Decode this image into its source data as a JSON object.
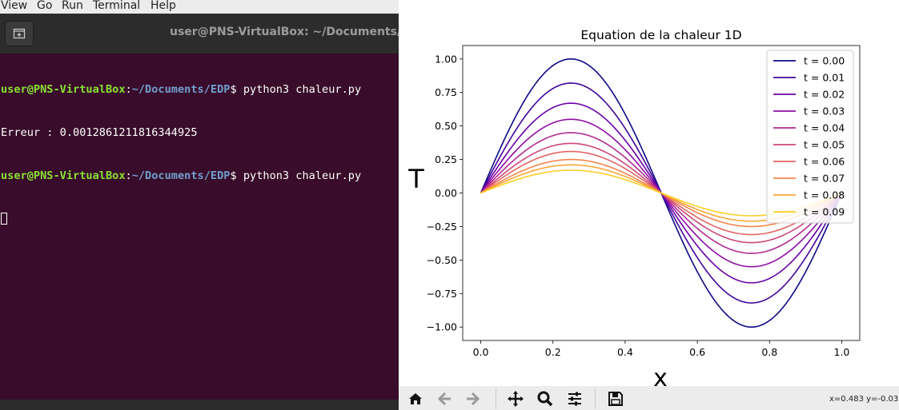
{
  "menubar": {
    "items": [
      "View",
      "Go",
      "Run",
      "Terminal",
      "Help"
    ]
  },
  "terminal": {
    "title": "user@PNS-VirtualBox: ~/Documents/EDP",
    "prompt_user": "user@PNS-VirtualBox",
    "prompt_sep": ":",
    "prompt_path": "~/Documents/EDP",
    "prompt_dollar": "$ ",
    "command1": "python3 chaleur.py",
    "output1": "Erreur : 0.0012861211816344925",
    "command2": "python3 chaleur.py"
  },
  "plot_window": {
    "coords": "x=0.483 y=-0.03",
    "toolbar_icons": [
      "home-icon",
      "back-arrow-icon",
      "forward-arrow-icon",
      "pan-icon",
      "zoom-icon",
      "configure-subplots-icon",
      "save-icon"
    ]
  },
  "chart_data": {
    "type": "line",
    "title": "Equation de la chaleur 1D",
    "xlabel": "x",
    "ylabel": "T",
    "xlim": [
      -0.05,
      1.05
    ],
    "ylim": [
      -1.1,
      1.1
    ],
    "xticks": [
      "0.0",
      "0.2",
      "0.4",
      "0.6",
      "0.8",
      "1.0"
    ],
    "xtick_values": [
      0.0,
      0.2,
      0.4,
      0.6,
      0.8,
      1.0
    ],
    "yticks": [
      "1.00",
      "0.75",
      "0.50",
      "0.25",
      "0.00",
      "−0.25",
      "−0.50",
      "−0.75",
      "−1.00"
    ],
    "ytick_values": [
      1.0,
      0.75,
      0.5,
      0.25,
      0.0,
      -0.25,
      -0.5,
      -0.75,
      -1.0
    ],
    "grid": false,
    "legend_position": "top-right",
    "x": [
      0.0,
      0.05,
      0.1,
      0.15,
      0.2,
      0.25,
      0.3,
      0.35,
      0.4,
      0.45,
      0.5,
      0.55,
      0.6,
      0.65,
      0.7,
      0.75,
      0.8,
      0.85,
      0.9,
      0.95,
      1.0
    ],
    "series": [
      {
        "name": "t = 0.00",
        "amplitude": 1.0,
        "color": "#0d0887"
      },
      {
        "name": "t = 0.01",
        "amplitude": 0.82,
        "color": "#41049d"
      },
      {
        "name": "t = 0.02",
        "amplitude": 0.67,
        "color": "#6a00a8"
      },
      {
        "name": "t = 0.03",
        "amplitude": 0.55,
        "color": "#8f0da4"
      },
      {
        "name": "t = 0.04",
        "amplitude": 0.45,
        "color": "#b12a90"
      },
      {
        "name": "t = 0.05",
        "amplitude": 0.37,
        "color": "#cc4778"
      },
      {
        "name": "t = 0.06",
        "amplitude": 0.31,
        "color": "#e16462"
      },
      {
        "name": "t = 0.07",
        "amplitude": 0.25,
        "color": "#f2844b"
      },
      {
        "name": "t = 0.08",
        "amplitude": 0.21,
        "color": "#fca636"
      },
      {
        "name": "t = 0.09",
        "amplitude": 0.17,
        "color": "#fcce25"
      }
    ]
  }
}
